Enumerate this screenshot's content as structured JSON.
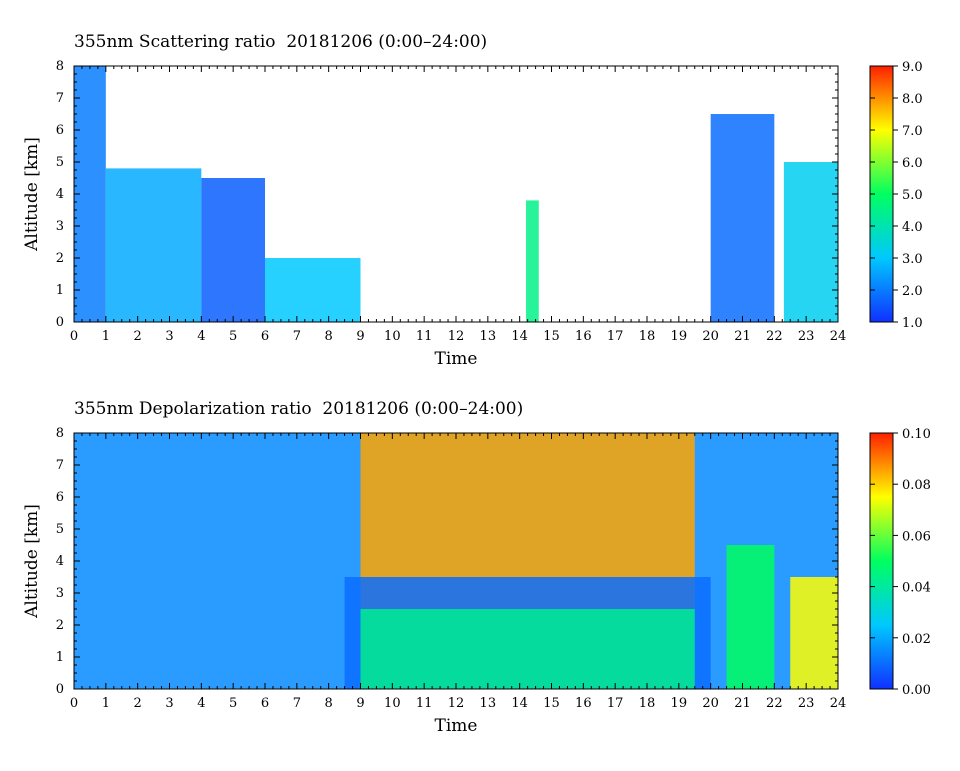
{
  "panels": [
    {
      "title": "355nm Scattering ratio  20181206 (0:00–24:00)",
      "xlabel": "Time",
      "ylabel": "Altitude [km]"
    },
    {
      "title": "355nm Depolarization ratio  20181206 (0:00–24:00)",
      "xlabel": "Time",
      "ylabel": "Altitude [km]"
    }
  ],
  "chart_data": [
    {
      "type": "heatmap",
      "title": "355nm Scattering ratio  20181206 (0:00–24:00)",
      "xlabel": "Time",
      "ylabel": "Altitude [km]",
      "xlim": [
        0,
        24
      ],
      "ylim": [
        0,
        8
      ],
      "x_ticks": [
        "0",
        "1",
        "2",
        "3",
        "4",
        "5",
        "6",
        "7",
        "8",
        "9",
        "10",
        "11",
        "12",
        "13",
        "14",
        "15",
        "16",
        "17",
        "18",
        "19",
        "20",
        "21",
        "22",
        "23",
        "24"
      ],
      "y_ticks": [
        "0",
        "1",
        "2",
        "3",
        "4",
        "5",
        "6",
        "7",
        "8"
      ],
      "colorbar": {
        "min": 1.0,
        "max": 9.0,
        "ticks": [
          "1.0",
          "2.0",
          "3.0",
          "4.0",
          "5.0",
          "6.0",
          "7.0",
          "8.0",
          "9.0"
        ],
        "colors": [
          "#1030ff",
          "#00c8ff",
          "#00ff60",
          "#ffff00",
          "#ff2000"
        ]
      },
      "features": [
        {
          "t": [
            0.0,
            1.0
          ],
          "top_km": 8.0,
          "value": 2.0
        },
        {
          "t": [
            1.0,
            4.0
          ],
          "top_km": 4.8,
          "value": 2.6
        },
        {
          "t": [
            4.0,
            6.0
          ],
          "top_km": 4.5,
          "value": 1.6
        },
        {
          "t": [
            6.0,
            9.0
          ],
          "top_km": 2.0,
          "value": 3.0
        },
        {
          "t": [
            14.2,
            14.6
          ],
          "top_km": 3.8,
          "value": 4.5
        },
        {
          "t": [
            20.0,
            22.0
          ],
          "top_km": 6.5,
          "value": 1.8
        },
        {
          "t": [
            22.3,
            24.0
          ],
          "top_km": 5.0,
          "value": 3.2
        }
      ]
    },
    {
      "type": "heatmap",
      "title": "355nm Depolarization ratio  20181206 (0:00–24:00)",
      "xlabel": "Time",
      "ylabel": "Altitude [km]",
      "xlim": [
        0,
        24
      ],
      "ylim": [
        0,
        8
      ],
      "x_ticks": [
        "0",
        "1",
        "2",
        "3",
        "4",
        "5",
        "6",
        "7",
        "8",
        "9",
        "10",
        "11",
        "12",
        "13",
        "14",
        "15",
        "16",
        "17",
        "18",
        "19",
        "20",
        "21",
        "22",
        "23",
        "24"
      ],
      "y_ticks": [
        "0",
        "1",
        "2",
        "3",
        "4",
        "5",
        "6",
        "7",
        "8"
      ],
      "colorbar": {
        "min": 0.0,
        "max": 0.1,
        "ticks": [
          "0.00",
          "0.02",
          "0.04",
          "0.06",
          "0.08",
          "0.10"
        ],
        "colors": [
          "#1030ff",
          "#00c8ff",
          "#00ff60",
          "#ffff00",
          "#ff2000"
        ]
      },
      "features": [
        {
          "t": [
            0.0,
            24.0
          ],
          "top_km": 8.0,
          "value": 0.015
        },
        {
          "t": [
            9.0,
            19.5
          ],
          "top_km": 8.0,
          "value": 0.085
        },
        {
          "t": [
            8.5,
            20.0
          ],
          "top_km": 3.5,
          "value": 0.01
        },
        {
          "t": [
            9.0,
            19.5
          ],
          "top_km": 2.5,
          "value": 0.042
        },
        {
          "t": [
            20.5,
            22.0
          ],
          "top_km": 4.5,
          "value": 0.05
        },
        {
          "t": [
            22.5,
            24.0
          ],
          "top_km": 3.5,
          "value": 0.075
        }
      ]
    }
  ]
}
